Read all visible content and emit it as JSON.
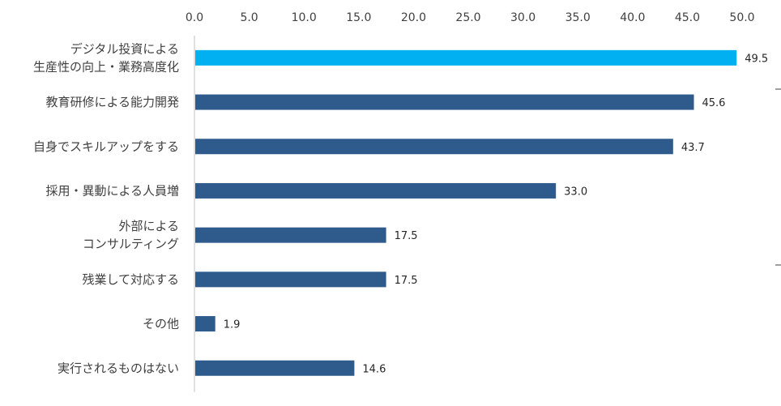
{
  "chart_data": {
    "type": "bar",
    "orientation": "horizontal",
    "title": "",
    "xlabel": "",
    "ylabel": "",
    "xlim": [
      0,
      50
    ],
    "x_ticks": [
      "0.0",
      "5.0",
      "10.0",
      "15.0",
      "20.0",
      "25.0",
      "30.0",
      "35.0",
      "40.0",
      "45.0",
      "50.0"
    ],
    "x_axis_position": "top",
    "grid": false,
    "legend": "none",
    "categories": [
      [
        "デジタル投資による",
        "生産性の向上・業務高度化"
      ],
      [
        "教育研修による能力開発"
      ],
      [
        "自身でスキルアップをする"
      ],
      [
        "採用・異動による人員増"
      ],
      [
        "外部による",
        "コンサルティング"
      ],
      [
        "残業して対応する"
      ],
      [
        "その他"
      ],
      [
        "実行されるものはない"
      ]
    ],
    "values": [
      49.5,
      45.6,
      43.7,
      33.0,
      17.5,
      17.5,
      1.9,
      14.6
    ],
    "value_labels": [
      "49.5",
      "45.6",
      "43.7",
      "33.0",
      "17.5",
      "17.5",
      "1.9",
      "14.6"
    ],
    "colors": {
      "highlight": "#00b0f0",
      "default": "#2f5b8c"
    },
    "highlight_index": 0
  }
}
